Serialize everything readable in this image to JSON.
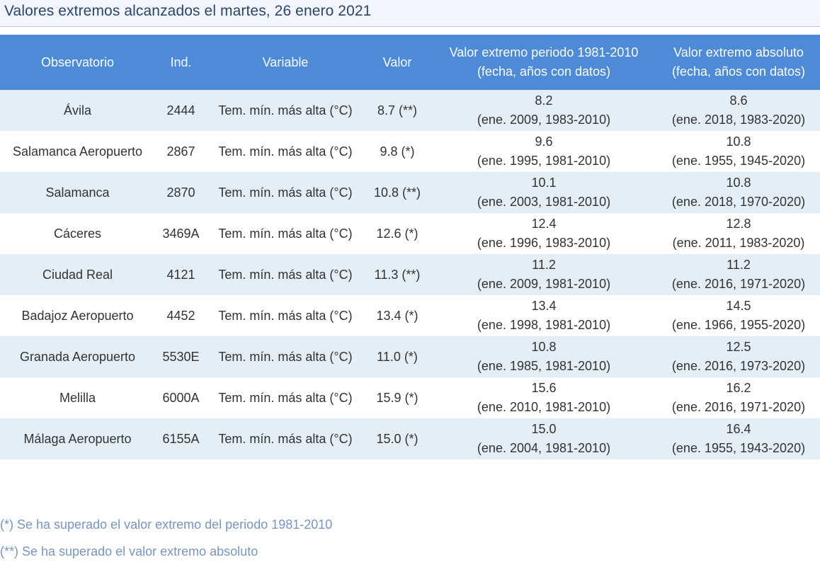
{
  "page_title": "Valores extremos alcanzados el martes, 26 enero 2021",
  "table": {
    "headers": {
      "observatorio": "Observatorio",
      "ind": "Ind.",
      "variable": "Variable",
      "valor": "Valor",
      "extremo_periodo_line1": "Valor extremo periodo 1981-2010",
      "extremo_periodo_line2": "(fecha, años con datos)",
      "extremo_absoluto_line1": "Valor extremo absoluto",
      "extremo_absoluto_line2": "(fecha, años con datos)"
    },
    "rows": [
      {
        "observatorio": "Ávila",
        "ind": "2444",
        "variable": "Tem. mín. más alta (°C)",
        "valor": "8.7 (**)",
        "periodo_valor": "8.2",
        "periodo_fecha": "(ene. 2009, 1983-2010)",
        "absoluto_valor": "8.6",
        "absoluto_fecha": "(ene. 2018, 1983-2020)"
      },
      {
        "observatorio": "Salamanca Aeropuerto",
        "ind": "2867",
        "variable": "Tem. mín. más alta (°C)",
        "valor": "9.8 (*)",
        "periodo_valor": "9.6",
        "periodo_fecha": "(ene. 1995, 1981-2010)",
        "absoluto_valor": "10.8",
        "absoluto_fecha": "(ene. 1955, 1945-2020)"
      },
      {
        "observatorio": "Salamanca",
        "ind": "2870",
        "variable": "Tem. mín. más alta (°C)",
        "valor": "10.8 (**)",
        "periodo_valor": "10.1",
        "periodo_fecha": "(ene. 2003, 1981-2010)",
        "absoluto_valor": "10.8",
        "absoluto_fecha": "(ene. 2018, 1970-2020)"
      },
      {
        "observatorio": "Cáceres",
        "ind": "3469A",
        "variable": "Tem. mín. más alta (°C)",
        "valor": "12.6 (*)",
        "periodo_valor": "12.4",
        "periodo_fecha": "(ene. 1996, 1983-2010)",
        "absoluto_valor": "12.8",
        "absoluto_fecha": "(ene. 2011, 1983-2020)"
      },
      {
        "observatorio": "Ciudad Real",
        "ind": "4121",
        "variable": "Tem. mín. más alta (°C)",
        "valor": "11.3 (**)",
        "periodo_valor": "11.2",
        "periodo_fecha": "(ene. 2009, 1981-2010)",
        "absoluto_valor": "11.2",
        "absoluto_fecha": "(ene. 2016, 1971-2020)"
      },
      {
        "observatorio": "Badajoz Aeropuerto",
        "ind": "4452",
        "variable": "Tem. mín. más alta (°C)",
        "valor": "13.4 (*)",
        "periodo_valor": "13.4",
        "periodo_fecha": "(ene. 1998, 1981-2010)",
        "absoluto_valor": "14.5",
        "absoluto_fecha": "(ene. 1966, 1955-2020)"
      },
      {
        "observatorio": "Granada Aeropuerto",
        "ind": "5530E",
        "variable": "Tem. mín. más alta (°C)",
        "valor": "11.0 (*)",
        "periodo_valor": "10.8",
        "periodo_fecha": "(ene. 1985, 1981-2010)",
        "absoluto_valor": "12.5",
        "absoluto_fecha": "(ene. 2016, 1973-2020)"
      },
      {
        "observatorio": "Melilla",
        "ind": "6000A",
        "variable": "Tem. mín. más alta (°C)",
        "valor": "15.9 (*)",
        "periodo_valor": "15.6",
        "periodo_fecha": "(ene. 2010, 1981-2010)",
        "absoluto_valor": "16.2",
        "absoluto_fecha": "(ene. 2016, 1971-2020)"
      },
      {
        "observatorio": "Málaga Aeropuerto",
        "ind": "6155A",
        "variable": "Tem. mín. más alta (°C)",
        "valor": "15.0 (*)",
        "periodo_valor": "15.0",
        "periodo_fecha": "(ene. 2004, 1981-2010)",
        "absoluto_valor": "16.4",
        "absoluto_fecha": "(ene. 1955, 1943-2020)"
      }
    ]
  },
  "notes": [
    "(*) Se ha superado el valor extremo del periodo 1981-2010",
    "(**) Se ha superado el valor extremo absoluto"
  ],
  "colors": {
    "header_bg": "#4d8ad8",
    "row_alt_bg": "#e4eef6",
    "title_text": "#2a4570",
    "note_text": "#7895c4"
  }
}
